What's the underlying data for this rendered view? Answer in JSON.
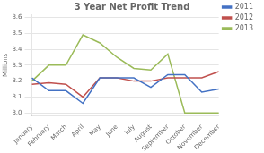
{
  "chart_data": {
    "type": "line",
    "title": "3 Year Net Profit Trend",
    "ylabel": "Millions",
    "categories": [
      "January",
      "February",
      "March",
      "April",
      "May",
      "June",
      "July",
      "August",
      "September",
      "October",
      "November",
      "December"
    ],
    "series": [
      {
        "name": "2011",
        "color": "#4472C4",
        "values": [
          8.22,
          8.14,
          8.14,
          8.06,
          8.22,
          8.22,
          8.22,
          8.16,
          8.24,
          8.24,
          8.13,
          8.15
        ]
      },
      {
        "name": "2012",
        "color": "#C0504D",
        "values": [
          8.18,
          8.19,
          8.18,
          8.1,
          8.22,
          8.22,
          8.2,
          8.2,
          8.22,
          8.22,
          8.22,
          8.26
        ]
      },
      {
        "name": "2013",
        "color": "#9BBB59",
        "values": [
          8.2,
          8.3,
          8.3,
          8.49,
          8.44,
          8.35,
          8.28,
          8.27,
          8.37,
          8.0,
          8.0,
          8.0
        ]
      }
    ],
    "ylim": [
      7.98,
      8.62
    ],
    "yticks": [
      {
        "value": 8.0,
        "label": "8.0"
      },
      8.1,
      8.2,
      8.3,
      8.4,
      8.5,
      8.6
    ],
    "grid": true,
    "legend": "right"
  }
}
